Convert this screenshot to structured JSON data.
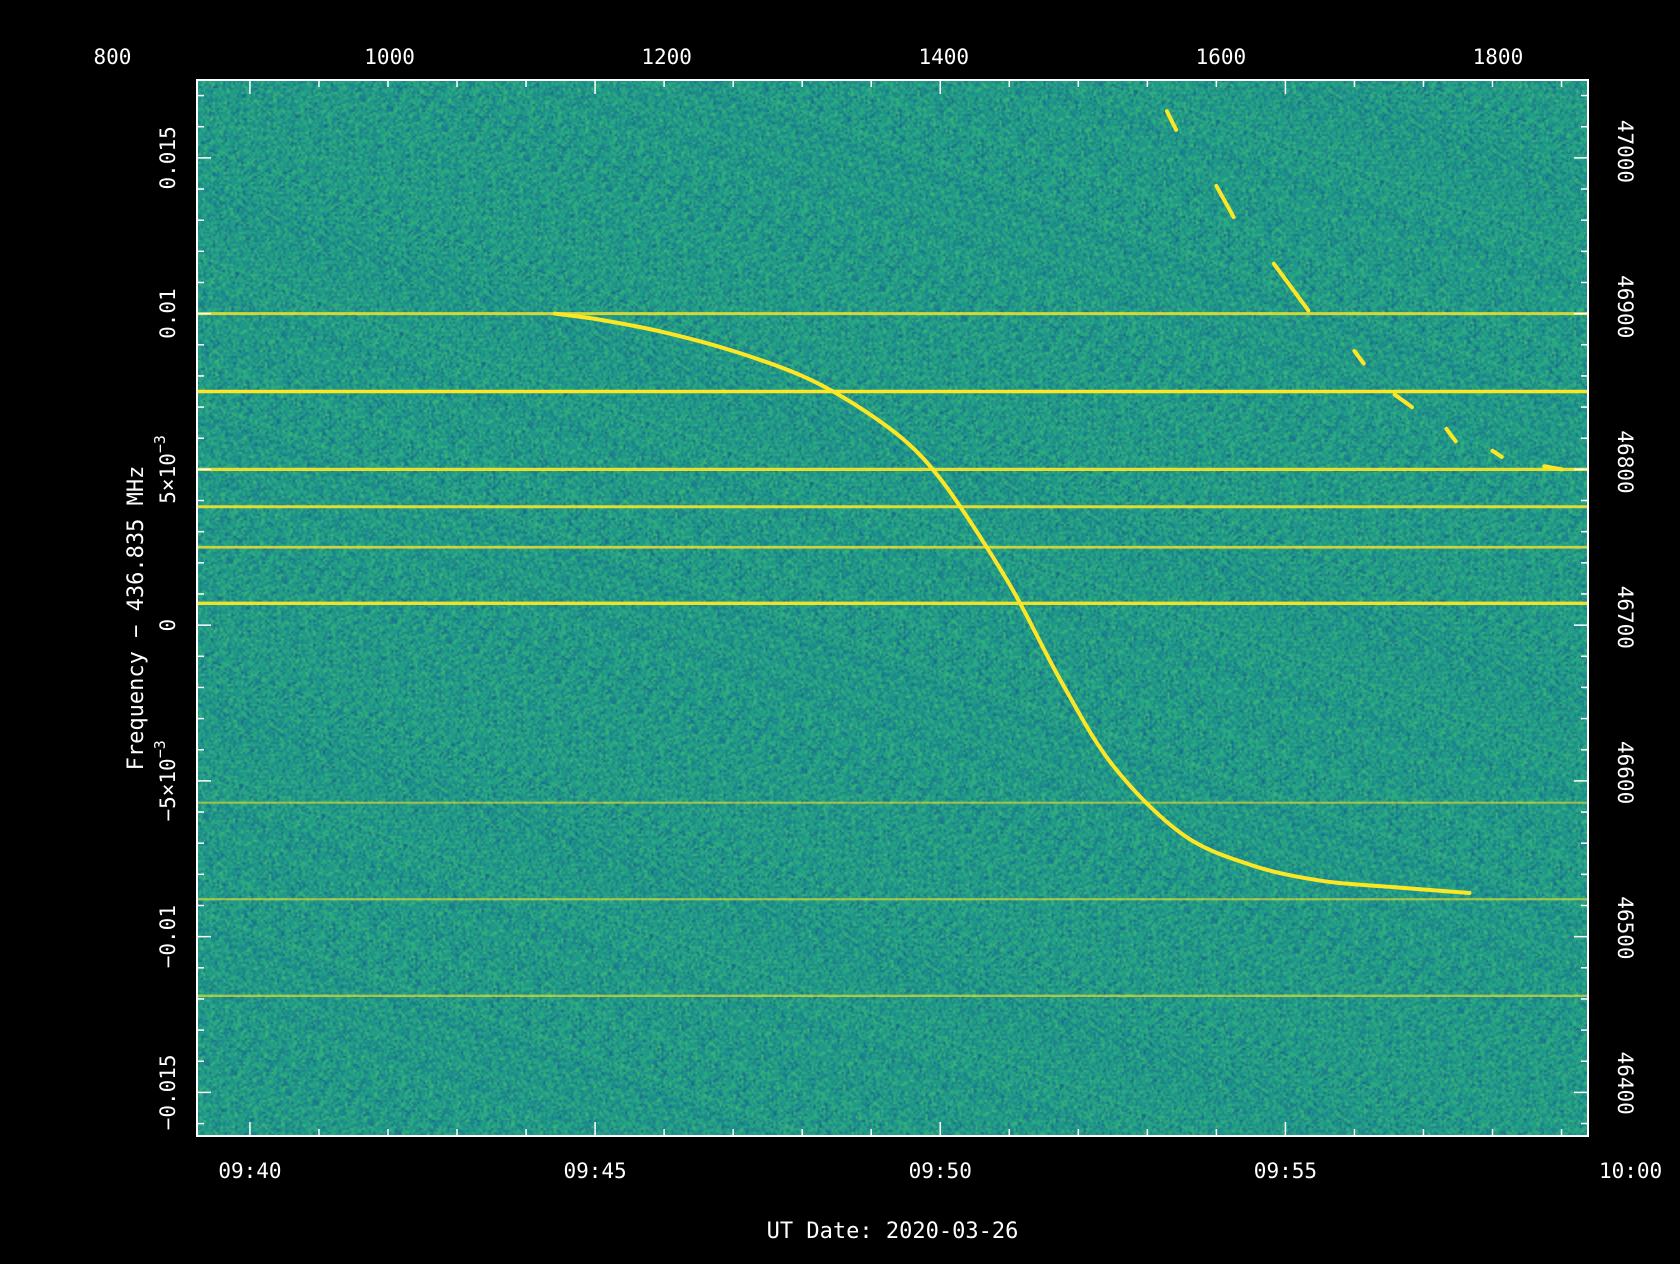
{
  "chart_data": {
    "type": "heatmap",
    "title": "",
    "xlabel": "UT Date: 2020-03-26",
    "ylabel": "Frequency − 436.835 MHz",
    "x_axis": {
      "unit": "UT time",
      "range": [
        "09:39:14",
        "09:59:23"
      ],
      "ticks": [
        "09:40",
        "09:45",
        "09:50",
        "09:55",
        "10:00"
      ]
    },
    "x_top_axis": {
      "unit": "sample index",
      "range": [
        861,
        1865
      ],
      "ticks": [
        "800",
        "1000",
        "1200",
        "1400",
        "1600",
        "1800"
      ]
    },
    "y_axis": {
      "unit": "MHz offset",
      "range": [
        -0.0164,
        0.0175
      ],
      "ticks": [
        "−0.015",
        "−0.01",
        "−5×10",
        "0",
        "5×10",
        "0.01",
        "0.015"
      ],
      "tick_exponent": "−3"
    },
    "y_right_axis": {
      "unit": "channel",
      "range": [
        46366,
        47046
      ],
      "ticks": [
        "46400",
        "46500",
        "46600",
        "46700",
        "46800",
        "46900",
        "47000"
      ]
    },
    "colormap": {
      "background": [
        "#13748a",
        "#1f9e89",
        "#35b779",
        "#2a8c8c"
      ],
      "signal": "#fde725"
    },
    "horizontal_lines": [
      {
        "y": 0.01,
        "strength": 0.7
      },
      {
        "y": 0.0075,
        "strength": 1.0
      },
      {
        "y": 0.005,
        "strength": 0.85
      },
      {
        "y": 0.0038,
        "strength": 0.8
      },
      {
        "y": 0.0025,
        "strength": 0.65
      },
      {
        "y": 0.0007,
        "strength": 0.9
      },
      {
        "y": -0.0057,
        "strength": 0.3
      },
      {
        "y": -0.0088,
        "strength": 0.35
      },
      {
        "y": -0.0119,
        "strength": 0.4
      }
    ],
    "doppler_track": {
      "x": [
        "09:44:25",
        "09:45:05",
        "09:46:00",
        "09:47:00",
        "09:48:00",
        "09:48:45",
        "09:49:30",
        "09:50:00",
        "09:50:30",
        "09:51:05",
        "09:51:45",
        "09:52:30",
        "09:53:30",
        "09:54:30",
        "09:55:30",
        "09:56:30",
        "09:57:40"
      ],
      "y": [
        0.01,
        0.0098,
        0.0094,
        0.0088,
        0.008,
        0.0071,
        0.0059,
        0.0047,
        0.0031,
        0.001,
        -0.0018,
        -0.0045,
        -0.0067,
        -0.0077,
        -0.0082,
        -0.0084,
        -0.0086
      ]
    },
    "short_streaks": [
      {
        "x": [
          "09:53:17",
          "09:53:25"
        ],
        "y": [
          0.0165,
          0.0159
        ]
      },
      {
        "x": [
          "09:54:00",
          "09:54:15"
        ],
        "y": [
          0.0141,
          0.0131
        ]
      },
      {
        "x": [
          "09:54:50",
          "09:55:20"
        ],
        "y": [
          0.0116,
          0.0101
        ]
      },
      {
        "x": [
          "09:56:00",
          "09:56:08"
        ],
        "y": [
          0.0088,
          0.0084
        ]
      },
      {
        "x": [
          "09:56:35",
          "09:56:50"
        ],
        "y": [
          0.0074,
          0.007
        ]
      },
      {
        "x": [
          "09:57:20",
          "09:57:28"
        ],
        "y": [
          0.0063,
          0.0059
        ]
      },
      {
        "x": [
          "09:58:00",
          "09:58:08"
        ],
        "y": [
          0.0056,
          0.0054
        ]
      },
      {
        "x": [
          "09:58:45",
          "09:59:00"
        ],
        "y": [
          0.0051,
          0.005
        ]
      }
    ]
  }
}
